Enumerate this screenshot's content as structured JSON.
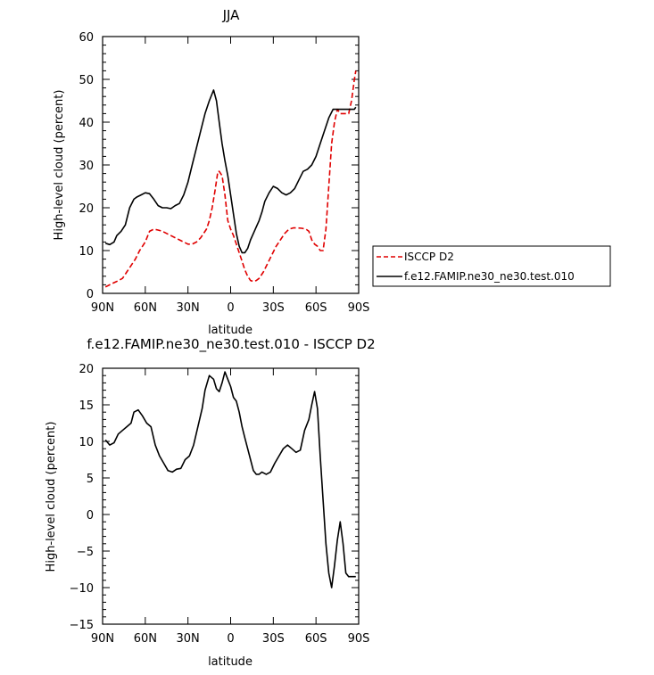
{
  "chart_data": [
    {
      "type": "line",
      "title": "JJA",
      "xlabel": "latitude",
      "ylabel": "High-level cloud (percent)",
      "xlim": [
        90,
        -90
      ],
      "ylim": [
        0,
        60
      ],
      "x_ticks": [
        90,
        60,
        30,
        0,
        -30,
        -60,
        -90
      ],
      "x_tick_labels": [
        "90N",
        "60N",
        "30N",
        "0",
        "30S",
        "60S",
        "90S"
      ],
      "y_ticks": [
        0,
        10,
        20,
        30,
        40,
        50,
        60
      ],
      "y_tick_labels": [
        "0",
        "10",
        "20",
        "30",
        "40",
        "50",
        "60"
      ],
      "legend_position": "right",
      "series": [
        {
          "name": "ISCCP D2",
          "color": "#e00000",
          "dash": "dashed",
          "x": [
            88,
            85,
            82,
            80,
            76,
            73,
            70,
            67,
            64,
            60,
            57,
            54,
            51,
            48,
            45,
            42,
            39,
            36,
            33,
            30,
            27,
            24,
            21,
            19,
            17,
            15,
            13,
            11,
            9,
            8,
            6,
            4,
            2,
            0,
            -2,
            -4,
            -6,
            -8,
            -10,
            -12,
            -14,
            -16,
            -18,
            -20,
            -23,
            -26,
            -29,
            -32,
            -35,
            -38,
            -41,
            -44,
            -47,
            -50,
            -53,
            -55,
            -57,
            -59,
            -61,
            -63,
            -65,
            -67,
            -69,
            -71,
            -73,
            -75,
            -77,
            -79,
            -81,
            -83,
            -85,
            -87,
            -88
          ],
          "y": [
            1.5,
            2,
            2.5,
            2.8,
            3.5,
            5,
            6.5,
            8,
            10,
            12,
            14.5,
            15,
            14.8,
            14.5,
            14,
            13.5,
            13,
            12.5,
            12,
            11.5,
            11.5,
            12,
            13,
            14,
            15,
            17,
            20,
            24,
            28.5,
            28.5,
            27.5,
            23,
            17,
            15,
            13.5,
            11.5,
            9.5,
            7.5,
            5.5,
            4,
            3,
            2.8,
            3,
            3.5,
            5,
            7,
            9,
            11,
            12.5,
            14,
            15,
            15.3,
            15.3,
            15.2,
            15,
            14.5,
            12.5,
            11.5,
            11,
            10,
            10,
            15,
            25,
            35,
            40,
            43,
            42,
            42,
            42,
            42,
            45,
            50,
            52
          ]
        },
        {
          "name": "f.e12.FAMIP.ne30_ne30.test.010",
          "color": "#000000",
          "dash": "solid",
          "x": [
            88,
            85,
            82,
            80,
            77,
            74,
            71,
            68,
            66,
            63,
            60,
            57,
            54,
            51,
            48,
            45,
            42,
            39,
            36,
            33,
            30,
            27,
            24,
            21,
            18,
            15,
            12,
            10,
            8,
            6,
            4,
            2,
            0,
            -2,
            -4,
            -6,
            -8,
            -10,
            -12,
            -14,
            -16,
            -18,
            -20,
            -22,
            -24,
            -27,
            -30,
            -33,
            -36,
            -39,
            -42,
            -45,
            -48,
            -51,
            -54,
            -57,
            -60,
            -63,
            -66,
            -69,
            -72,
            -75,
            -78,
            -81,
            -84,
            -87,
            -88
          ],
          "y": [
            11.7,
            11.4,
            12,
            13.5,
            14.5,
            16,
            20,
            22,
            22.5,
            23,
            23.5,
            23.3,
            22,
            20.5,
            20,
            20,
            19.8,
            20.5,
            21,
            23,
            26,
            30,
            34,
            38,
            42,
            45,
            47.5,
            45,
            40,
            35,
            31,
            27.5,
            23,
            18.5,
            14,
            11,
            9.5,
            9.5,
            10.5,
            12.5,
            14,
            15.5,
            17,
            19,
            21.5,
            23.5,
            25,
            24.5,
            23.5,
            23,
            23.5,
            24.5,
            26.5,
            28.5,
            29,
            30,
            32,
            35,
            38,
            41,
            43,
            43,
            43,
            43,
            43,
            43,
            43.5
          ]
        }
      ]
    },
    {
      "type": "line",
      "title": "f.e12.FAMIP.ne30_ne30.test.010 - ISCCP D2",
      "xlabel": "latitude",
      "ylabel": "High-level cloud (percent)",
      "xlim": [
        90,
        -90
      ],
      "ylim": [
        -15,
        20
      ],
      "x_ticks": [
        90,
        60,
        30,
        0,
        -30,
        -60,
        -90
      ],
      "x_tick_labels": [
        "90N",
        "60N",
        "30N",
        "0",
        "30S",
        "60S",
        "90S"
      ],
      "y_ticks": [
        -15,
        -10,
        -5,
        0,
        5,
        10,
        15,
        20
      ],
      "y_tick_labels": [
        "−15",
        "−10",
        "−5",
        "0",
        "5",
        "10",
        "15",
        "20"
      ],
      "series": [
        {
          "color": "#000000",
          "dash": "solid",
          "x": [
            88,
            85,
            82,
            79,
            76,
            73,
            70,
            68,
            65,
            62,
            59,
            56,
            53,
            50,
            47,
            44,
            41,
            38,
            35,
            32,
            29,
            26,
            23,
            20,
            18,
            15,
            12,
            10,
            8,
            6,
            4,
            2,
            0,
            -2,
            -4,
            -6,
            -8,
            -10,
            -12,
            -14,
            -16,
            -18,
            -20,
            -22,
            -25,
            -28,
            -31,
            -34,
            -37,
            -40,
            -43,
            -46,
            -49,
            -52,
            -55,
            -57,
            -59,
            -61,
            -63,
            -65,
            -67,
            -69,
            -71,
            -73,
            -75,
            -77,
            -79,
            -81,
            -83,
            -85,
            -87,
            -88
          ],
          "y": [
            10.2,
            9.5,
            9.8,
            11,
            11.5,
            12,
            12.5,
            14,
            14.3,
            13.5,
            12.5,
            12,
            9.5,
            8,
            7,
            6,
            5.8,
            6.2,
            6.3,
            7.5,
            8,
            9.5,
            12,
            14.5,
            17,
            19,
            18.5,
            17.2,
            16.8,
            18,
            19.5,
            18.5,
            17.5,
            16,
            15.5,
            14,
            12,
            10.5,
            9,
            7.5,
            6,
            5.5,
            5.5,
            5.8,
            5.5,
            5.8,
            7,
            8,
            9,
            9.5,
            9,
            8.5,
            8.8,
            11.5,
            13,
            15,
            16.8,
            14.5,
            8,
            2,
            -4,
            -8,
            -10,
            -7,
            -3.5,
            -1,
            -4,
            -8,
            -8.5,
            -8.5,
            -8.5,
            -8.5
          ]
        }
      ]
    }
  ]
}
